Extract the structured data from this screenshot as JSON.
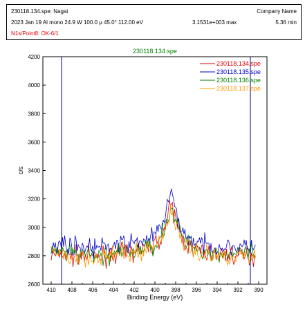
{
  "header": {
    "file_line": "230118.134.spe: Nagai",
    "company": "Company Name",
    "acq_line": "2023 Jan 19  Al mono  24.9 W  100.0 μ  45.0°  112.00 eV",
    "max_line": "3.1531e+003 max",
    "time_line": "5.36 min",
    "region_line": "N1s/Point8: OK-6/1"
  },
  "colors": {
    "red": "#e00000",
    "blue": "#0000c8",
    "green": "#008000",
    "orange": "#ff9900",
    "title": "#008000",
    "region_text": "#e00000"
  },
  "chart_data": {
    "type": "line",
    "title": "230118.134.spe",
    "xlabel": "Binding Energy (eV)",
    "ylabel": "c/s",
    "xlim": [
      410.8,
      389.2
    ],
    "ylim": [
      2600,
      4200
    ],
    "xticks": [
      410,
      408,
      406,
      404,
      402,
      400,
      398,
      396,
      394,
      392,
      390
    ],
    "yticks": [
      2600,
      2800,
      3000,
      3200,
      3400,
      3600,
      3800,
      4000,
      4200
    ],
    "grid": false,
    "legend_position": "top-right",
    "markers": [
      409.0,
      390.8
    ],
    "series": [
      {
        "name": "230118.134.spe",
        "color_key": "red",
        "x": [
          410,
          409,
          408,
          407,
          406,
          405,
          404,
          403,
          402,
          401,
          400,
          399.5,
          399,
          398.7,
          398.5,
          398.2,
          398,
          397.5,
          397,
          396,
          395,
          394,
          393,
          392,
          391,
          390.2
        ],
        "y": [
          2800,
          2810,
          2790,
          2800,
          2790,
          2800,
          2810,
          2820,
          2830,
          2850,
          2880,
          2920,
          3000,
          3080,
          3150,
          3110,
          3050,
          2950,
          2880,
          2840,
          2820,
          2810,
          2810,
          2800,
          2800,
          2790
        ]
      },
      {
        "name": "230118.135.spe",
        "color_key": "blue",
        "x": [
          410,
          409,
          408,
          407,
          406,
          405,
          404,
          403,
          402,
          401,
          400,
          399.5,
          399,
          398.7,
          398.5,
          398.2,
          398,
          397.5,
          397,
          396,
          395,
          394,
          393,
          392,
          391,
          390.2
        ],
        "y": [
          2880,
          2880,
          2870,
          2860,
          2860,
          2860,
          2870,
          2880,
          2890,
          2910,
          2940,
          2990,
          3080,
          3180,
          3240,
          3190,
          3100,
          3000,
          2930,
          2890,
          2870,
          2860,
          2860,
          2860,
          2860,
          2870
        ]
      },
      {
        "name": "230118.136.spe",
        "color_key": "green",
        "x": [
          410,
          409,
          408,
          407,
          406,
          405,
          404,
          403,
          402,
          401,
          400,
          399.5,
          399,
          398.7,
          398.5,
          398.2,
          398,
          397.5,
          397,
          396,
          395,
          394,
          393,
          392,
          391,
          390.2
        ],
        "y": [
          2820,
          2820,
          2810,
          2810,
          2800,
          2800,
          2810,
          2820,
          2830,
          2850,
          2880,
          2930,
          3010,
          3090,
          3140,
          3100,
          3040,
          2950,
          2890,
          2850,
          2830,
          2820,
          2820,
          2810,
          2810,
          2820
        ]
      },
      {
        "name": "230118.137.spe",
        "color_key": "orange",
        "x": [
          410,
          409,
          408,
          407,
          406,
          405,
          404,
          403,
          402,
          401,
          400,
          399.5,
          399,
          398.7,
          398.5,
          398.2,
          398,
          397.5,
          397,
          396,
          395,
          394,
          393,
          392,
          391,
          390.2
        ],
        "y": [
          2810,
          2800,
          2790,
          2790,
          2790,
          2790,
          2800,
          2810,
          2820,
          2840,
          2870,
          2910,
          2990,
          3060,
          3110,
          3080,
          3010,
          2930,
          2870,
          2830,
          2810,
          2800,
          2800,
          2800,
          2800,
          2800
        ]
      }
    ]
  }
}
